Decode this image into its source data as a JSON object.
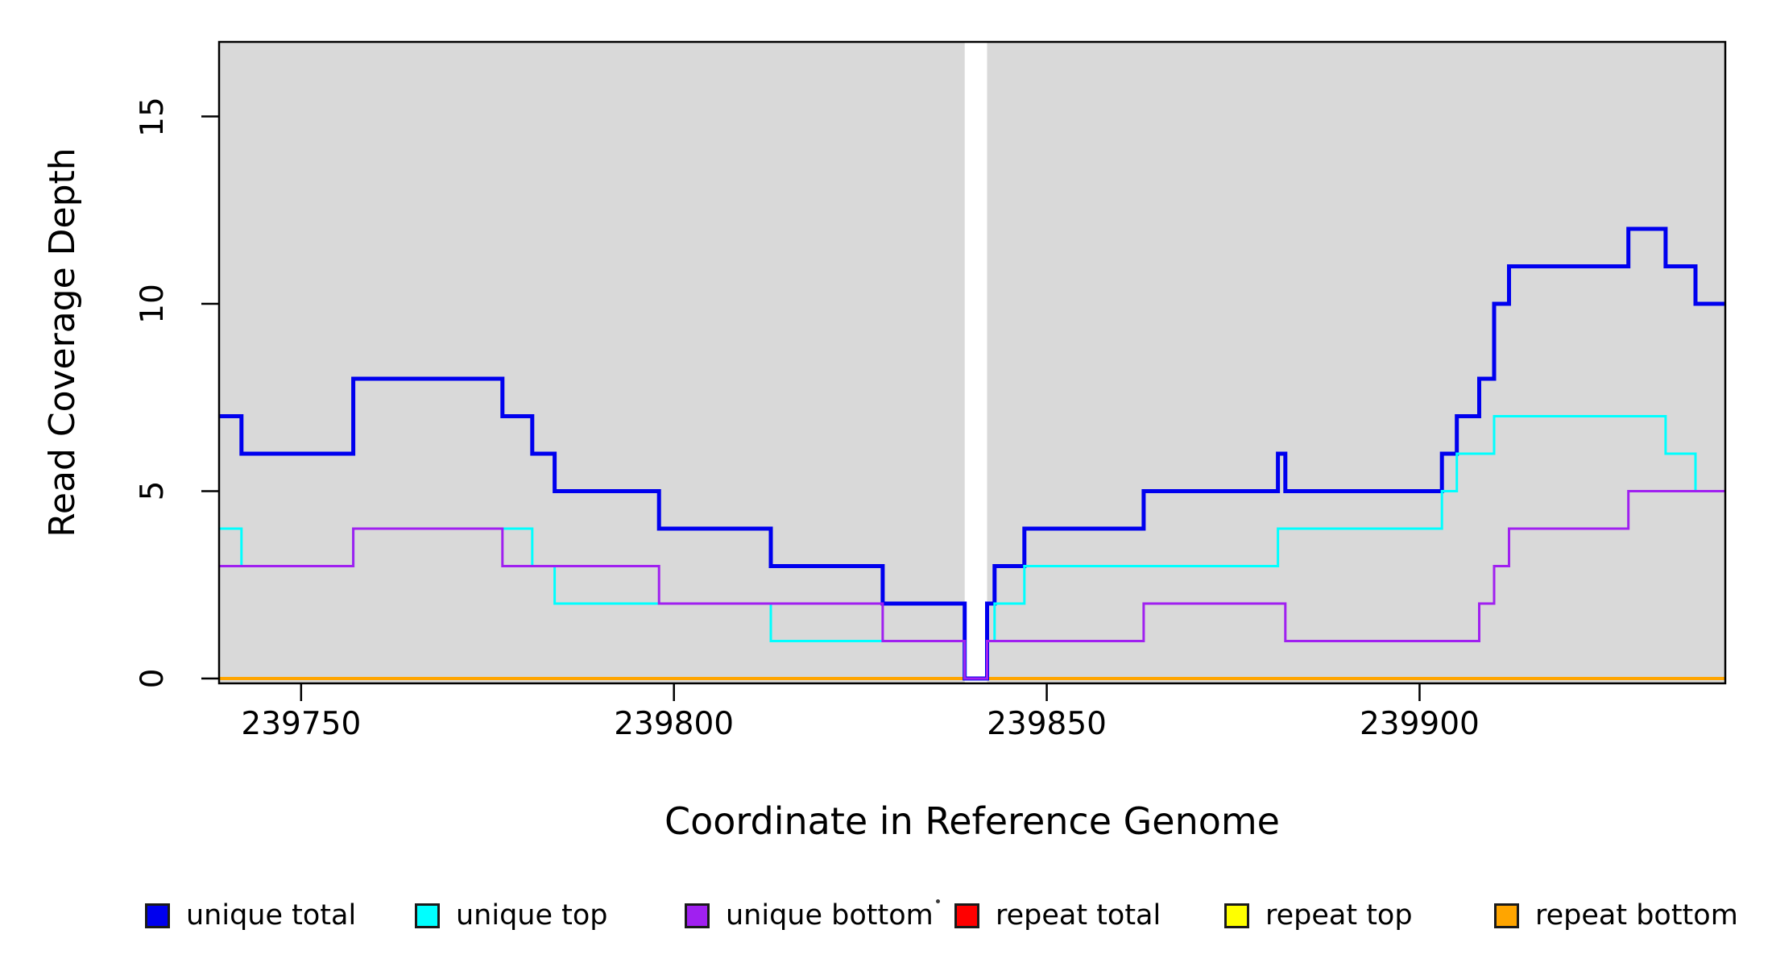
{
  "figure": {
    "x_axis_title": "Coordinate in Reference Genome",
    "y_axis_title": "Read Coverage Depth",
    "background_color": "#ffffff",
    "panel_background_color": "#D9D9D9",
    "panel_border_color": "#000000",
    "gap_band_color": "#ffffff"
  },
  "chart_data": {
    "type": "line",
    "subtype": "step-after-coverage",
    "title": "",
    "xlabel": "Coordinate in Reference Genome",
    "ylabel": "Read Coverage Depth",
    "xlim": [
      239739,
      239941
    ],
    "ylim": [
      -0.13,
      16.99
    ],
    "grid": false,
    "x_ticks": [
      {
        "value": 239750,
        "label": "239750"
      },
      {
        "value": 239800,
        "label": "239800"
      },
      {
        "value": 239850,
        "label": "239850"
      },
      {
        "value": 239900,
        "label": "239900"
      }
    ],
    "y_ticks": [
      {
        "value": 0,
        "label": "0"
      },
      {
        "value": 5,
        "label": "5"
      },
      {
        "value": 10,
        "label": "10"
      },
      {
        "value": 15,
        "label": "15"
      }
    ],
    "zero_coverage_gap": {
      "x_start": 239839,
      "x_end": 239842
    },
    "series": [
      {
        "name": "repeat total",
        "color": "#FF0000",
        "width": 4,
        "above_gap": false,
        "steps": [
          [
            239739,
            0
          ]
        ]
      },
      {
        "name": "repeat top",
        "color": "#FFFF00",
        "width": 4,
        "above_gap": false,
        "steps": [
          [
            239739,
            0
          ]
        ]
      },
      {
        "name": "repeat bottom",
        "color": "#FFA500",
        "width": 4,
        "above_gap": false,
        "steps": [
          [
            239739,
            0
          ]
        ]
      },
      {
        "name": "unique total",
        "color": "#0000EE",
        "width": 5,
        "above_gap": true,
        "steps": [
          [
            239739,
            7
          ],
          [
            239742,
            6
          ],
          [
            239757,
            8
          ],
          [
            239777,
            7
          ],
          [
            239781,
            6
          ],
          [
            239784,
            5
          ],
          [
            239798,
            4
          ],
          [
            239813,
            3
          ],
          [
            239828,
            2
          ],
          [
            239839,
            0
          ],
          [
            239842,
            2
          ],
          [
            239843,
            3
          ],
          [
            239847,
            4
          ],
          [
            239863,
            5
          ],
          [
            239881,
            6
          ],
          [
            239882,
            5
          ],
          [
            239903,
            6
          ],
          [
            239905,
            7
          ],
          [
            239908,
            8
          ],
          [
            239910,
            10
          ],
          [
            239912,
            11
          ],
          [
            239928,
            12
          ],
          [
            239933,
            11
          ],
          [
            239937,
            10
          ]
        ]
      },
      {
        "name": "unique top",
        "color": "#00FFFF",
        "width": 3,
        "above_gap": true,
        "steps": [
          [
            239739,
            4
          ],
          [
            239742,
            3
          ],
          [
            239757,
            4
          ],
          [
            239781,
            3
          ],
          [
            239784,
            2
          ],
          [
            239813,
            1
          ],
          [
            239839,
            0
          ],
          [
            239842,
            1
          ],
          [
            239843,
            2
          ],
          [
            239847,
            3
          ],
          [
            239881,
            4
          ],
          [
            239903,
            5
          ],
          [
            239905,
            6
          ],
          [
            239910,
            7
          ],
          [
            239933,
            6
          ],
          [
            239937,
            5
          ]
        ]
      },
      {
        "name": "unique bottom",
        "color": "#A020F0",
        "width": 3,
        "above_gap": true,
        "steps": [
          [
            239739,
            3
          ],
          [
            239757,
            4
          ],
          [
            239777,
            3
          ],
          [
            239798,
            2
          ],
          [
            239828,
            1
          ],
          [
            239839,
            0
          ],
          [
            239842,
            1
          ],
          [
            239863,
            2
          ],
          [
            239882,
            1
          ],
          [
            239908,
            2
          ],
          [
            239910,
            3
          ],
          [
            239912,
            4
          ],
          [
            239928,
            5
          ]
        ]
      }
    ],
    "legend": {
      "position": "bottom",
      "entries": [
        {
          "label": "unique total",
          "color": "#0000EE"
        },
        {
          "label": "unique top",
          "color": "#00FFFF"
        },
        {
          "label": "unique bottom",
          "color": "#A020F0"
        },
        {
          "label": "repeat total",
          "color": "#FF0000"
        },
        {
          "label": "repeat top",
          "color": "#FFFF00"
        },
        {
          "label": "repeat bottom",
          "color": "#FFA500"
        }
      ]
    }
  }
}
